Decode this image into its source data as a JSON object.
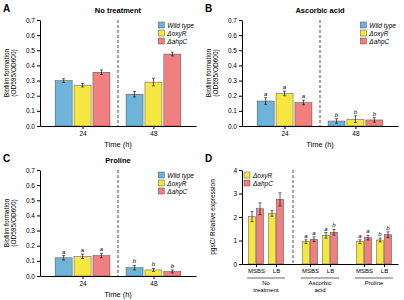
{
  "chart_data": [
    {
      "type": "bar",
      "title": "No treatment",
      "panel_label": "A",
      "categories": [
        "24",
        "48"
      ],
      "xlabel": "Time (h)",
      "ylabel": "Biofilm formation\n(OD595/OD600)",
      "series": [
        {
          "name": "Wild type",
          "color": "#6EB4D8",
          "values": [
            0.3,
            0.21
          ],
          "errors": [
            0.012,
            0.018
          ]
        },
        {
          "name": "ΔoxyR",
          "color": "#F5E642",
          "values": [
            0.27,
            0.29
          ],
          "errors": [
            0.012,
            0.025
          ]
        },
        {
          "name": "ΔahpC",
          "color": "#F08080",
          "values": [
            0.355,
            0.475
          ],
          "errors": [
            0.015,
            0.012
          ]
        }
      ],
      "ylim": [
        0,
        0.7
      ],
      "yticks": [
        {
          "value": 0,
          "label": "0.0"
        },
        0.1,
        0.2,
        0.3,
        0.4,
        0.5,
        0.6,
        0.7
      ],
      "legend": "upper right"
    },
    {
      "type": "bar",
      "title": "Ascorbic acid",
      "panel_label": "B",
      "categories": [
        "24",
        "48"
      ],
      "xlabel": "Time (h)",
      "ylabel": "Biofilm formation\n(OD595/OD600)",
      "series": [
        {
          "name": "Wild type",
          "color": "#6EB4D8",
          "values": [
            0.165,
            0.033
          ],
          "errors": [
            0.022,
            0.015
          ],
          "annotations": [
            "a",
            "b"
          ]
        },
        {
          "name": "ΔoxyR",
          "color": "#F5E642",
          "values": [
            0.215,
            0.045
          ],
          "errors": [
            0.015,
            0.022
          ],
          "annotations": [
            "a",
            "b"
          ]
        },
        {
          "name": "ΔahpC",
          "color": "#F08080",
          "values": [
            0.155,
            0.04
          ],
          "errors": [
            0.015,
            0.015
          ],
          "annotations": [
            "a",
            "b"
          ]
        }
      ],
      "ylim": [
        0,
        0.7
      ],
      "yticks": [
        {
          "value": 0,
          "label": "0.0"
        },
        0.1,
        0.2,
        0.3,
        0.4,
        0.5,
        0.6,
        0.7
      ],
      "legend": "upper right"
    },
    {
      "type": "bar",
      "title": "Proline",
      "panel_label": "C",
      "categories": [
        "24",
        "48"
      ],
      "xlabel": "Time (h)",
      "ylabel": "Biofilm formation\n(OD595/OD600)",
      "series": [
        {
          "name": "Wild type",
          "color": "#6EB4D8",
          "values": [
            0.12,
            0.055
          ],
          "errors": [
            0.015,
            0.015
          ],
          "annotations": [
            "a",
            "b"
          ]
        },
        {
          "name": "ΔoxyR",
          "color": "#F5E642",
          "values": [
            0.13,
            0.04
          ],
          "errors": [
            0.015,
            0.01
          ],
          "annotations": [
            "a",
            "b"
          ]
        },
        {
          "name": "ΔahpC",
          "color": "#F08080",
          "values": [
            0.135,
            0.03
          ],
          "errors": [
            0.015,
            0.01
          ],
          "annotations": [
            "a",
            "b"
          ]
        }
      ],
      "ylim": [
        0,
        0.7
      ],
      "yticks": [
        {
          "value": 0,
          "label": "0.0"
        },
        0.1,
        0.2,
        0.3,
        0.4,
        0.5,
        0.6,
        0.7
      ],
      "legend": "upper right"
    },
    {
      "type": "bar",
      "panel_label": "D",
      "categories": [
        "MSBS",
        "LB",
        "MSBS",
        "LB",
        "MSBS",
        "LB"
      ],
      "section_labels": [
        "No\ntreatment",
        "Ascorbic\nacid",
        "Proline"
      ],
      "ylabel": "pgsC/ Relative expression",
      "series": [
        {
          "name": "ΔoxyR",
          "color": "#F5E642",
          "values": [
            2.02,
            2.15,
            0.95,
            1.22,
            0.95,
            1.02
          ],
          "errors": [
            0.22,
            0.12,
            0.08,
            0.12,
            0.08,
            0.08
          ],
          "annotations": [
            null,
            null,
            "a",
            "a",
            "a",
            "b"
          ]
        },
        {
          "name": "ΔahpC",
          "color": "#F08080",
          "values": [
            2.35,
            2.75,
            1.05,
            1.35,
            1.12,
            1.25
          ],
          "errors": [
            0.25,
            0.28,
            0.1,
            0.12,
            0.1,
            0.12
          ],
          "annotations": [
            null,
            null,
            "a",
            "b",
            "a",
            "b"
          ]
        }
      ],
      "ylim": [
        0,
        4
      ],
      "yticks": [
        0,
        1,
        2,
        3,
        4
      ],
      "legend": "upper left"
    }
  ]
}
